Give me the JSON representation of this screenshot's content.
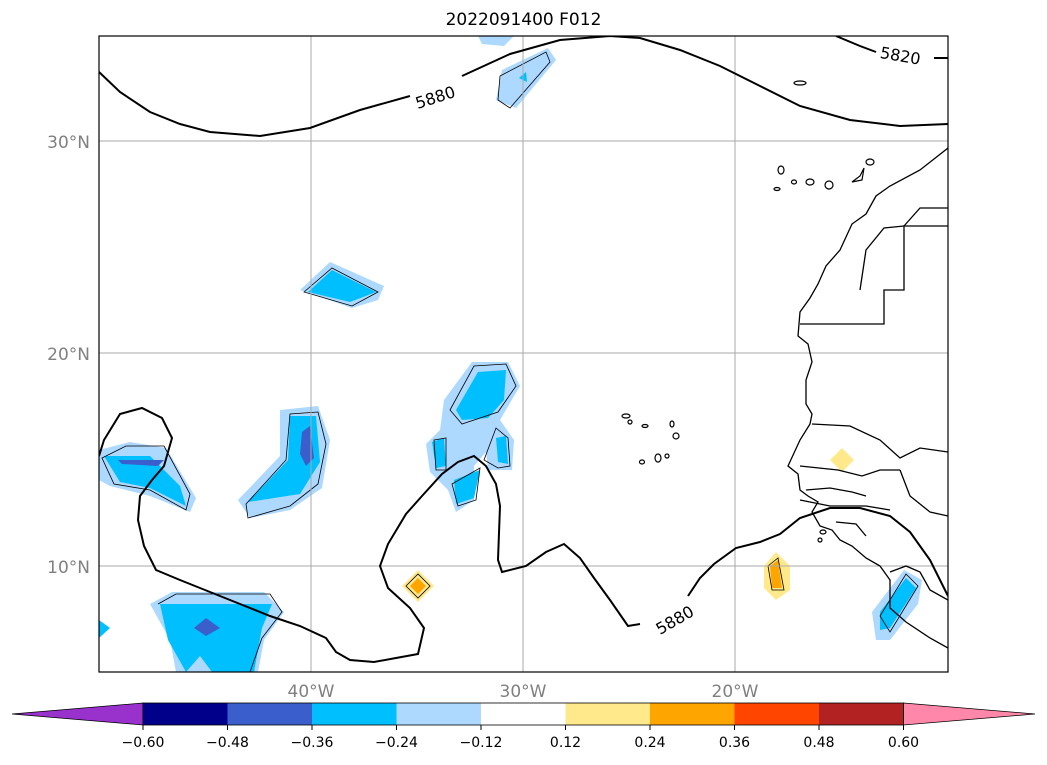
{
  "title": "2022091400 F012",
  "map": {
    "lat_labels": [
      "30°N",
      "20°N",
      "10°N"
    ],
    "lon_labels": [
      "40°W",
      "30°W",
      "20°W"
    ],
    "contour_labels": [
      "5880",
      "5880",
      "5820"
    ]
  },
  "colorbar": {
    "ticks": [
      "−0.60",
      "−0.48",
      "−0.36",
      "−0.24",
      "−0.12",
      "0.12",
      "0.24",
      "0.36",
      "0.48",
      "0.60"
    ],
    "colors": [
      "#9932cc",
      "#00008b",
      "#3a5fcd",
      "#00bfff",
      "#add8ff",
      "#ffffff",
      "#ffe98a",
      "#ffa500",
      "#ff4500",
      "#b22222",
      "#ff88aa"
    ]
  }
}
